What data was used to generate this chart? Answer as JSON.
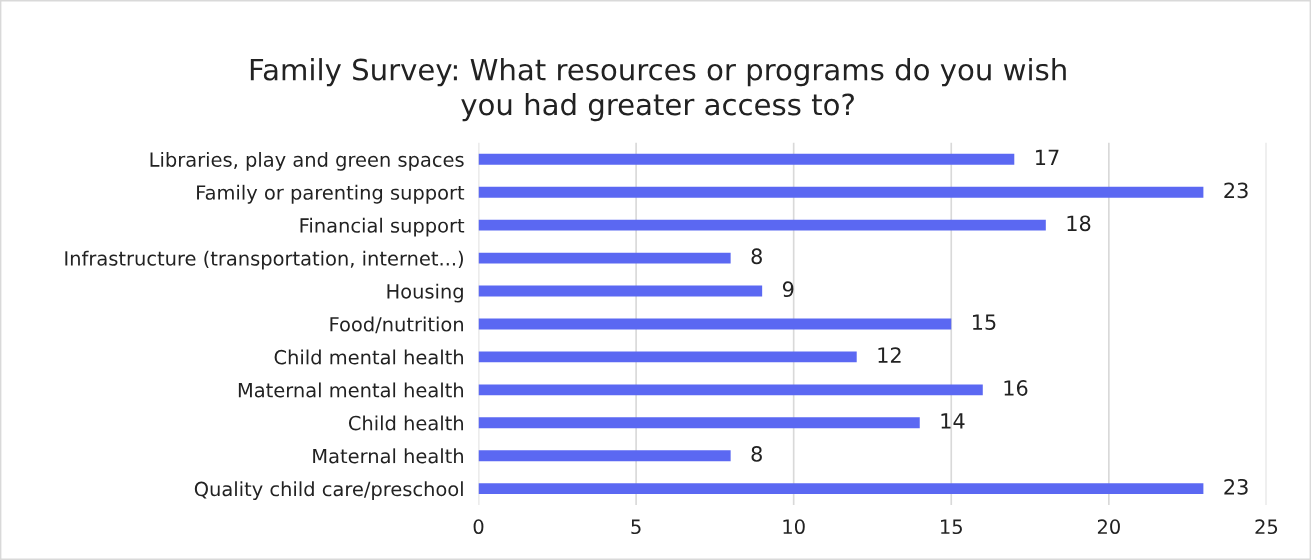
{
  "chart_data": {
    "type": "bar",
    "orientation": "horizontal",
    "title": "Family Survey: What resources or programs do you wish\nyou had greater access to?",
    "categories": [
      "Libraries, play and green spaces",
      "Family or parenting support",
      "Financial support",
      "Infrastructure (transportation, internet...)",
      "Housing",
      "Food/nutrition",
      "Child mental health",
      "Maternal mental health",
      "Child health",
      "Maternal health",
      "Quality child care/preschool"
    ],
    "values": [
      17,
      23,
      18,
      8,
      9,
      15,
      12,
      16,
      14,
      8,
      23
    ],
    "color": "#5b68f2",
    "xlim": [
      0,
      25
    ],
    "xticks": [
      0,
      5,
      10,
      15,
      20,
      25
    ],
    "grid": "x",
    "data_labels": true
  }
}
